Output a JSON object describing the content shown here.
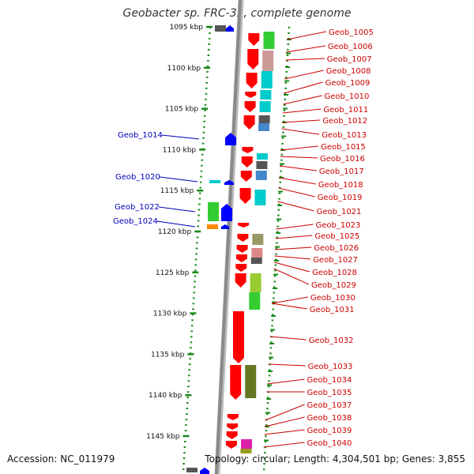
{
  "title": "Geobacter sp. FRC-32, complete genome",
  "footer": {
    "accession_label": "Accession:",
    "accession": "NC_011979",
    "topology_label": "Topology:",
    "topology": "circular;",
    "length_label": "Length:",
    "length": "4,304,501 bp;",
    "genes_label": "Genes:",
    "genes": "3,855"
  },
  "scale_ticks": [
    "1095 kbp",
    "1100 kbp",
    "1105 kbp",
    "1110 kbp",
    "1115 kbp",
    "1120 kbp",
    "1125 kbp",
    "1130 kbp",
    "1135 kbp",
    "1140 kbp",
    "1145 kbp"
  ],
  "colors": {
    "reverse_label": "#cc0000",
    "forward_label": "#0000bb",
    "reverse_gene": "#ff0000",
    "forward_gene": "#0000ff",
    "tick_green": "#1a8a1a",
    "backbone": "#8a8a8a"
  },
  "left_labels": [
    "Geob_1014",
    "Geob_1020",
    "Geob_1022",
    "Geob_1024"
  ],
  "right_labels": [
    "Geob_1005",
    "Geob_1006",
    "Geob_1007",
    "Geob_1008",
    "Geob_1009",
    "Geob_1010",
    "Geob_1011",
    "Geob_1012",
    "Geob_1013",
    "Geob_1015",
    "Geob_1016",
    "Geob_1017",
    "Geob_1018",
    "Geob_1019",
    "Geob_1021",
    "Geob_1023",
    "Geob_1025",
    "Geob_1026",
    "Geob_1027",
    "Geob_1028",
    "Geob_1029",
    "Geob_1030",
    "Geob_1031",
    "Geob_1032",
    "Geob_1033",
    "Geob_1034",
    "Geob_1035",
    "Geob_1037",
    "Geob_1038",
    "Geob_1039",
    "Geob_1040"
  ]
}
